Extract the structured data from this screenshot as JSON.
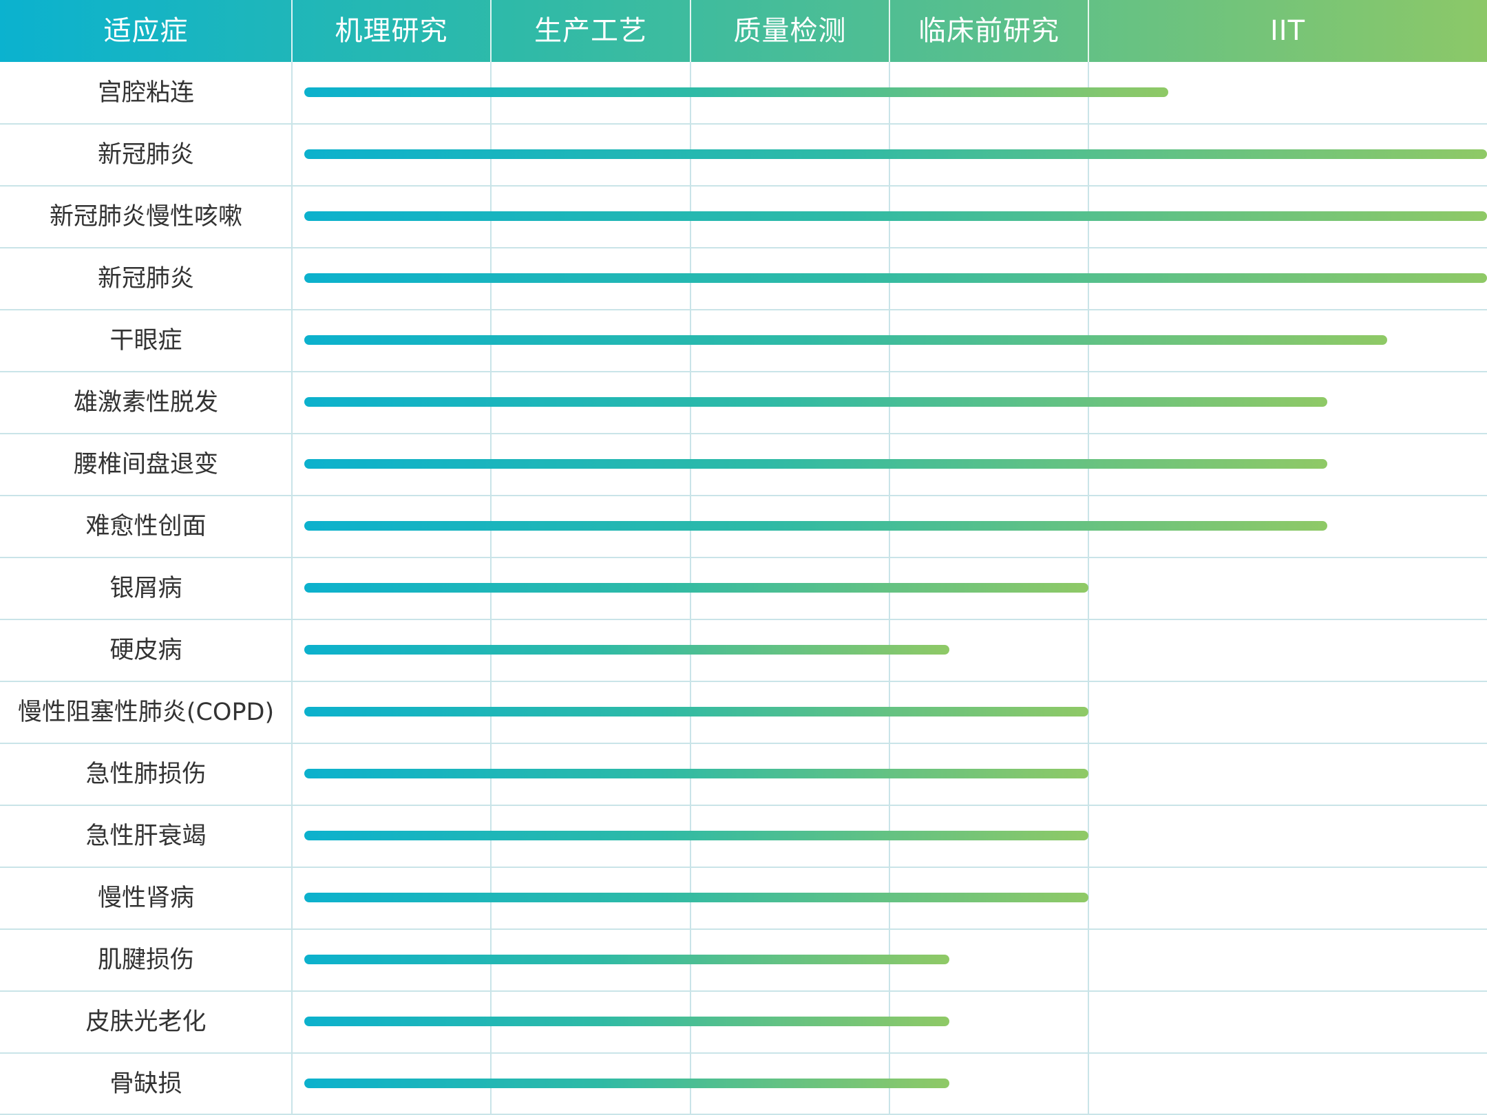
{
  "chart_data": {
    "type": "bar",
    "orientation": "horizontal",
    "stages": [
      "机理研究",
      "生产工艺",
      "质量检测",
      "临床前研究",
      "IIT"
    ],
    "header": {
      "indication_label": "适应症"
    },
    "xlabel": "",
    "ylabel": "",
    "grid": true,
    "rows": [
      {
        "label": "宫腔粘连",
        "progress": 4.2
      },
      {
        "label": "新冠肺炎",
        "progress": 5.0
      },
      {
        "label": "新冠肺炎慢性咳嗽",
        "progress": 5.0
      },
      {
        "label": "新冠肺炎",
        "progress": 5.0
      },
      {
        "label": "干眼症",
        "progress": 4.75
      },
      {
        "label": "雄激素性脱发",
        "progress": 4.6
      },
      {
        "label": "腰椎间盘退变",
        "progress": 4.6
      },
      {
        "label": "难愈性创面",
        "progress": 4.6
      },
      {
        "label": "银屑病",
        "progress": 4.0
      },
      {
        "label": "硬皮病",
        "progress": 3.3
      },
      {
        "label": "慢性阻塞性肺炎(COPD)",
        "progress": 4.0
      },
      {
        "label": "急性肺损伤",
        "progress": 4.0
      },
      {
        "label": "急性肝衰竭",
        "progress": 4.0
      },
      {
        "label": "慢性肾病",
        "progress": 4.0
      },
      {
        "label": "肌腱损伤",
        "progress": 3.3
      },
      {
        "label": "皮肤光老化",
        "progress": 3.3
      },
      {
        "label": "骨缺损",
        "progress": 3.3
      }
    ]
  }
}
